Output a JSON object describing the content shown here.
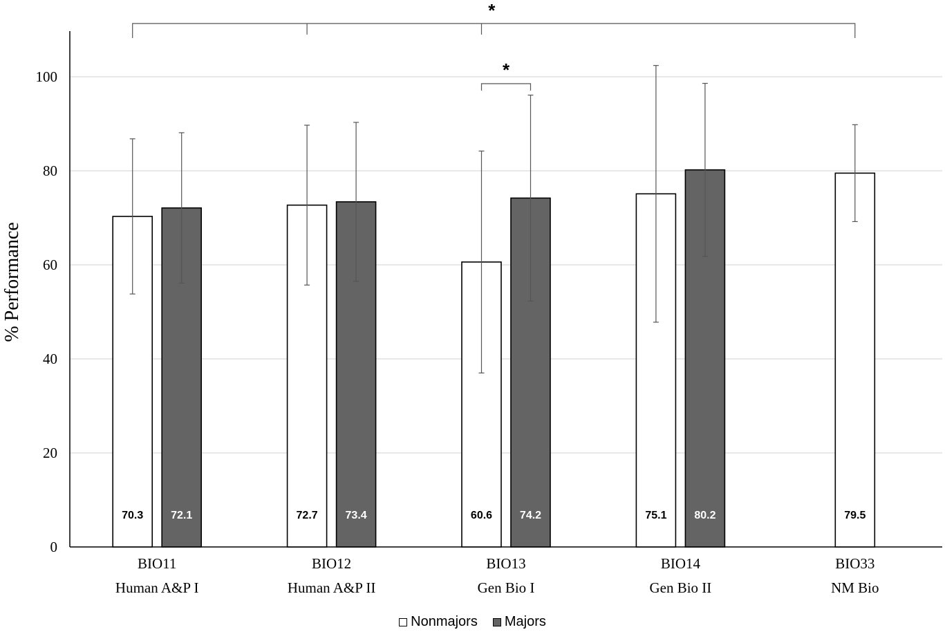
{
  "chart_data": {
    "type": "bar",
    "ylabel": "% Performance",
    "xlabel": "",
    "ylim": [
      0,
      110
    ],
    "yticks": [
      0,
      20,
      40,
      60,
      80,
      100
    ],
    "grid": true,
    "legend_position": "bottom",
    "categories": [
      {
        "code": "BIO11",
        "name": "Human A&P I"
      },
      {
        "code": "BIO12",
        "name": "Human A&P II"
      },
      {
        "code": "BIO13",
        "name": "Gen Bio I"
      },
      {
        "code": "BIO14",
        "name": "Gen Bio II"
      },
      {
        "code": "BIO33",
        "name": "NM Bio"
      }
    ],
    "series": [
      {
        "name": "Nonmajors",
        "color": "#ffffff",
        "label_color": "#000000",
        "values": [
          70.3,
          72.7,
          60.6,
          75.1,
          79.5
        ],
        "labels": [
          "70.3",
          "72.7",
          "60.6",
          "75.1",
          "79.5"
        ],
        "error": [
          16.5,
          17.0,
          23.6,
          27.3,
          10.3
        ]
      },
      {
        "name": "Majors",
        "color": "#646464",
        "label_color": "#ffffff",
        "values": [
          72.1,
          73.4,
          74.2,
          80.2,
          null
        ],
        "labels": [
          "72.1",
          "73.4",
          "74.2",
          "80.2",
          ""
        ],
        "error": [
          16.0,
          16.9,
          21.9,
          18.4,
          null
        ]
      }
    ],
    "annotations": [
      {
        "type": "significance",
        "text": "*",
        "span": "BIO11, BIO12, BIO13 Nonmajors vs BIO33 Nonmajors"
      },
      {
        "type": "significance",
        "text": "*",
        "span": "BIO13 Nonmajors vs BIO13 Majors"
      }
    ]
  }
}
